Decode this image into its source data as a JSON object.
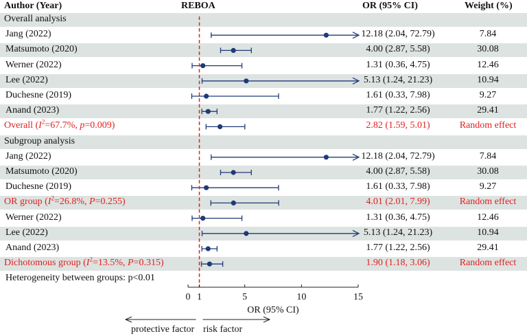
{
  "headers": {
    "study": "Author (Year)",
    "plot": "REBOA",
    "or": "OR (95% CI)",
    "weight": "Weight (%)"
  },
  "colors": {
    "marker": "#1f3a78",
    "highlight": "#e11f1f",
    "band": "#dde3e1",
    "text": "#111111"
  },
  "rows": [
    {
      "type": "section",
      "label": "Overall analysis"
    },
    {
      "type": "study",
      "label": "Jang (2022)",
      "or": 12.18,
      "lo": 2.04,
      "hi": 72.79,
      "ci_text": "12.18 (2.04, 72.79)",
      "weight": "7.84"
    },
    {
      "type": "study",
      "label": "Matsumoto (2020)",
      "or": 4.0,
      "lo": 2.87,
      "hi": 5.58,
      "ci_text": "4.00 (2.87, 5.58)",
      "weight": "30.08"
    },
    {
      "type": "study",
      "label": "Werner (2022)",
      "or": 1.31,
      "lo": 0.36,
      "hi": 4.75,
      "ci_text": "1.31 (0.36, 4.75)",
      "weight": "12.46"
    },
    {
      "type": "study",
      "label": "Lee (2022)",
      "or": 5.13,
      "lo": 1.24,
      "hi": 21.23,
      "ci_text": "5.13 (1.24, 21.23)",
      "weight": "10.94"
    },
    {
      "type": "study",
      "label": "Duchesne (2019)",
      "or": 1.61,
      "lo": 0.33,
      "hi": 7.98,
      "ci_text": "1.61 (0.33, 7.98)",
      "weight": "9.27"
    },
    {
      "type": "study",
      "label": "Anand (2023)",
      "or": 1.77,
      "lo": 1.22,
      "hi": 2.56,
      "ci_text": "1.77 (1.22, 2.56)",
      "weight": "29.41"
    },
    {
      "type": "summary",
      "label_pre": "Overall (",
      "stat_i": "I",
      "stat_sup": "2",
      "stat_mid": "=67.7%, ",
      "stat_p": "p",
      "stat_end": "=0.009)",
      "or": 2.82,
      "lo": 1.59,
      "hi": 5.01,
      "ci_text": "2.82 (1.59, 5.01)",
      "weight": "Random effect"
    },
    {
      "type": "section",
      "label": "Subgroup analysis"
    },
    {
      "type": "study",
      "label": "Jang (2022)",
      "or": 12.18,
      "lo": 2.04,
      "hi": 72.79,
      "ci_text": "12.18 (2.04, 72.79)",
      "weight": "7.84"
    },
    {
      "type": "study",
      "label": "Matsumoto (2020)",
      "or": 4.0,
      "lo": 2.87,
      "hi": 5.58,
      "ci_text": "4.00 (2.87, 5.58)",
      "weight": "30.08"
    },
    {
      "type": "study",
      "label": "Duchesne (2019)",
      "or": 1.61,
      "lo": 0.33,
      "hi": 7.98,
      "ci_text": "1.61 (0.33, 7.98)",
      "weight": "9.27"
    },
    {
      "type": "summary",
      "label_pre": "OR group (",
      "stat_i": "I",
      "stat_sup": "2",
      "stat_mid": "=26.8%, ",
      "stat_p": "P",
      "stat_end": "=0.255)",
      "or": 4.01,
      "lo": 2.01,
      "hi": 7.99,
      "ci_text": "4.01 (2.01, 7.99)",
      "weight": "Random effect"
    },
    {
      "type": "study",
      "label": "Werner (2022)",
      "or": 1.31,
      "lo": 0.36,
      "hi": 4.75,
      "ci_text": "1.31 (0.36, 4.75)",
      "weight": "12.46"
    },
    {
      "type": "study",
      "label": "Lee (2022)",
      "or": 5.13,
      "lo": 1.24,
      "hi": 21.23,
      "ci_text": "5.13 (1.24, 21.23)",
      "weight": "10.94"
    },
    {
      "type": "study",
      "label": "Anand (2023)",
      "or": 1.77,
      "lo": 1.22,
      "hi": 2.56,
      "ci_text": "1.77 (1.22, 2.56)",
      "weight": "29.41"
    },
    {
      "type": "summary",
      "label_pre": "Dichotomous group (",
      "stat_i": "I",
      "stat_sup": "2",
      "stat_mid": "=13.5%, ",
      "stat_p": "P",
      "stat_end": "=0.315)",
      "or": 1.9,
      "lo": 1.18,
      "hi": 3.06,
      "ci_text": "1.90 (1.18, 3.06)",
      "weight": "Random effect"
    },
    {
      "type": "note",
      "label": "Heterogeneity between groups: p<0.01"
    }
  ],
  "chart_data": {
    "type": "forest",
    "title": "REBOA",
    "xlabel": "OR (95% CI)",
    "xlim": [
      0,
      15
    ],
    "ticks": [
      0,
      1,
      5,
      10,
      15
    ],
    "reference_line": 1,
    "arrow_left_label": "protective factor",
    "arrow_right_label": "risk factor"
  }
}
